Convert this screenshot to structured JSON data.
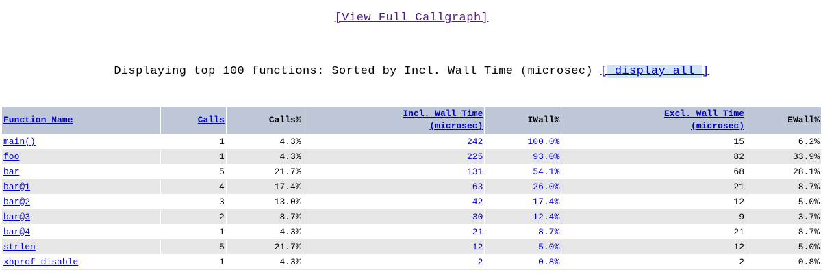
{
  "header": {
    "callgraph_link": "[View Full Callgraph]",
    "summary_text": "Displaying top 100 functions: Sorted by Incl. Wall Time (microsec) ",
    "display_all_open": "[",
    "display_all_label": " display all ",
    "display_all_close": "]"
  },
  "table": {
    "columns": {
      "function_name": "Function Name",
      "calls": "Calls",
      "calls_pct": "Calls%",
      "incl_wall_line1": "Incl. Wall Time",
      "incl_wall_line2": "(microsec)",
      "iwall_pct": "IWall%",
      "excl_wall_line1": "Excl. Wall Time",
      "excl_wall_line2": "(microsec)",
      "ewall_pct": "EWall%"
    },
    "rows": [
      {
        "name": "main()",
        "calls": "1",
        "calls_pct": "4.3%",
        "incl": "242",
        "iwall_pct": "100.0%",
        "excl": "15",
        "ewall_pct": "6.2%"
      },
      {
        "name": "foo",
        "calls": "1",
        "calls_pct": "4.3%",
        "incl": "225",
        "iwall_pct": "93.0%",
        "excl": "82",
        "ewall_pct": "33.9%"
      },
      {
        "name": "bar",
        "calls": "5",
        "calls_pct": "21.7%",
        "incl": "131",
        "iwall_pct": "54.1%",
        "excl": "68",
        "ewall_pct": "28.1%"
      },
      {
        "name": "bar@1",
        "calls": "4",
        "calls_pct": "17.4%",
        "incl": "63",
        "iwall_pct": "26.0%",
        "excl": "21",
        "ewall_pct": "8.7%"
      },
      {
        "name": "bar@2",
        "calls": "3",
        "calls_pct": "13.0%",
        "incl": "42",
        "iwall_pct": "17.4%",
        "excl": "12",
        "ewall_pct": "5.0%"
      },
      {
        "name": "bar@3",
        "calls": "2",
        "calls_pct": "8.7%",
        "incl": "30",
        "iwall_pct": "12.4%",
        "excl": "9",
        "ewall_pct": "3.7%"
      },
      {
        "name": "bar@4",
        "calls": "1",
        "calls_pct": "4.3%",
        "incl": "21",
        "iwall_pct": "8.7%",
        "excl": "21",
        "ewall_pct": "8.7%"
      },
      {
        "name": "strlen",
        "calls": "5",
        "calls_pct": "21.7%",
        "incl": "12",
        "iwall_pct": "5.0%",
        "excl": "12",
        "ewall_pct": "5.0%"
      },
      {
        "name": "xhprof_disable",
        "calls": "1",
        "calls_pct": "4.3%",
        "incl": "2",
        "iwall_pct": "0.8%",
        "excl": "2",
        "ewall_pct": "0.8%"
      }
    ]
  },
  "colors": {
    "header_bg": "#bdc7d8",
    "row_alt_bg": "#e6e6e6",
    "link": "#0000cc",
    "visited_link": "#551a8b"
  }
}
